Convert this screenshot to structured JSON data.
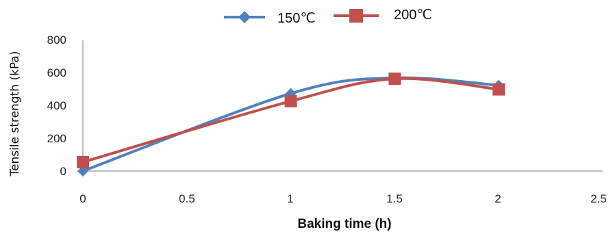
{
  "chart_data": {
    "type": "line",
    "title": "",
    "xlabel": "Baking time (h)",
    "ylabel": "Tensile strength (kPa)",
    "xlim": [
      0,
      2.5
    ],
    "ylim": [
      0,
      800
    ],
    "x_ticks": [
      "0",
      "0.5",
      "1",
      "1.5",
      "2",
      "2.5"
    ],
    "y_ticks": [
      "0",
      "200",
      "400",
      "600",
      "800"
    ],
    "grid": false,
    "smoothed": true,
    "legend_position": "top",
    "series": [
      {
        "name": "150℃",
        "color": "#4f81bd",
        "marker": "diamond",
        "x": [
          0,
          1,
          1.5,
          2
        ],
        "y": [
          0,
          475,
          570,
          525
        ]
      },
      {
        "name": "200℃",
        "color": "#c0504d",
        "marker": "square",
        "x": [
          0,
          1,
          1.5,
          2
        ],
        "y": [
          55,
          428,
          565,
          500
        ]
      }
    ]
  }
}
